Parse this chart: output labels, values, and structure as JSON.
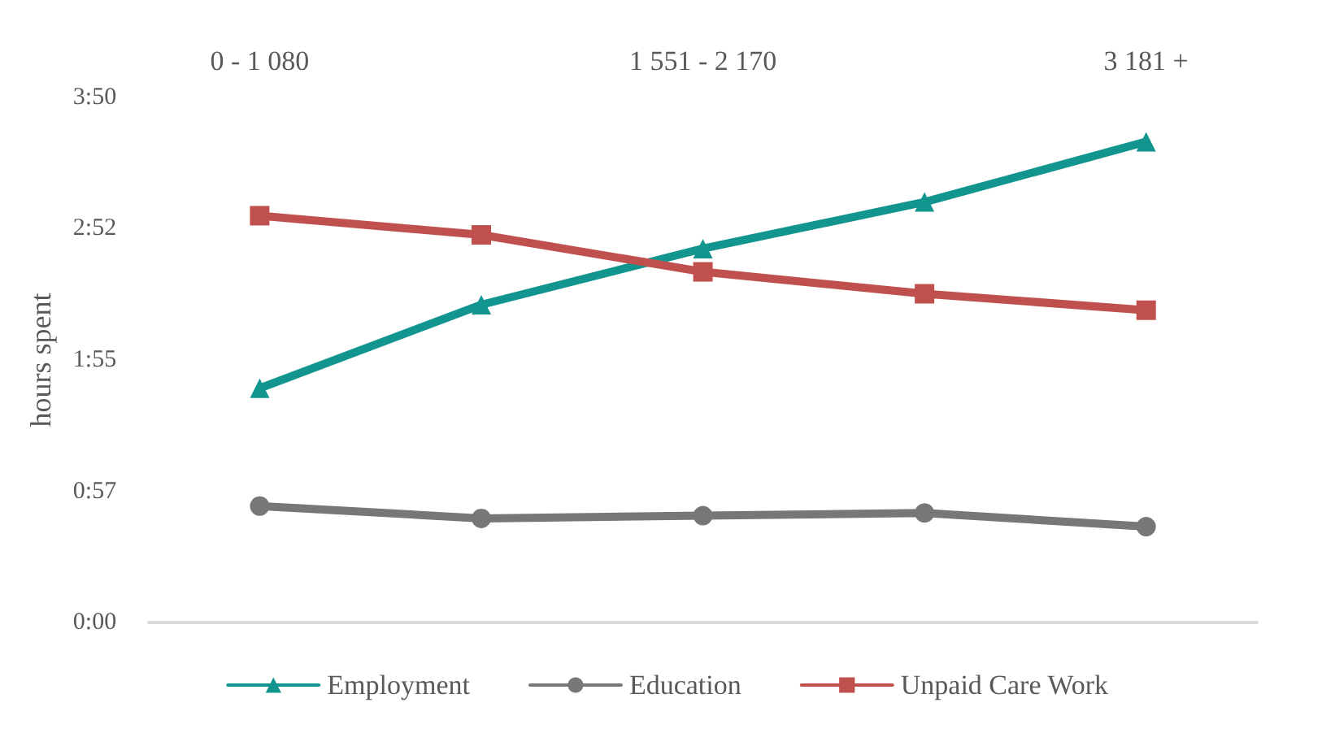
{
  "chart_data": {
    "type": "line",
    "ylabel": "hours spent",
    "categories": [
      "0 - 1 080",
      null,
      "1 551 - 2 170",
      null,
      "3 181 +"
    ],
    "series": [
      {
        "name": "Employment",
        "color": "#13958f",
        "marker": "triangle",
        "values": [
          1.71,
          2.32,
          2.73,
          3.07,
          3.51
        ]
      },
      {
        "name": "Education",
        "color": "#777777",
        "marker": "circle",
        "values": [
          0.85,
          0.76,
          0.78,
          0.8,
          0.7
        ]
      },
      {
        "name": "Unpaid Care Work",
        "color": "#c0504d",
        "marker": "square",
        "values": [
          2.97,
          2.83,
          2.56,
          2.4,
          2.28
        ]
      }
    ],
    "ylim": [
      0,
      3.833
    ],
    "yticks": [
      {
        "value": 0,
        "label": "0:00"
      },
      {
        "value": 0.958,
        "label": "0:57"
      },
      {
        "value": 1.917,
        "label": "1:55"
      },
      {
        "value": 2.875,
        "label": "2:52"
      },
      {
        "value": 3.833,
        "label": "3:50"
      }
    ],
    "grid": false,
    "legend": "bottom",
    "line_style": "solid"
  }
}
